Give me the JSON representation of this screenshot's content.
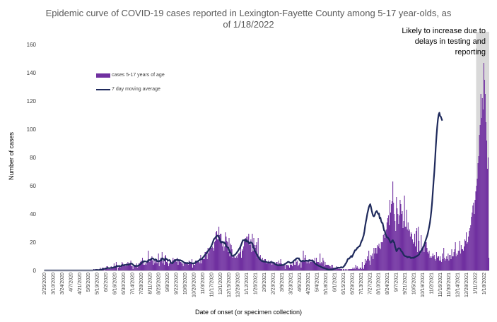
{
  "chart_data": {
    "type": "bar",
    "title_lines": [
      "Epidemic curve of COVID-19 cases reported in Lexington-Fayette County among 5-17 year-olds, as",
      "of 1/18/2022"
    ],
    "annotation_lines": [
      "Likely to increase due to",
      "delays in testing and",
      "reporting"
    ],
    "xlabel": "Date of onset (or specimen collection)",
    "ylabel": "Number of cases",
    "ylim": [
      0,
      160
    ],
    "yticks": [
      "0",
      "20",
      "40",
      "60",
      "80",
      "100",
      "120",
      "140",
      "160"
    ],
    "grid": false,
    "legend_position": "top-left",
    "x_tick_labels": [
      "2/25/2020",
      "3/10/2020",
      "3/24/2020",
      "4/7/2020",
      "4/21/2020",
      "5/5/2020",
      "5/19/2020",
      "6/2/2020",
      "6/16/2020",
      "6/30/2020",
      "7/14/2020",
      "7/28/2020",
      "8/11/2020",
      "8/25/2020",
      "9/8/2020",
      "9/22/2020",
      "10/6/2020",
      "10/20/2020",
      "11/3/2020",
      "11/17/2020",
      "12/1/2020",
      "12/15/2020",
      "12/29/2020",
      "1/12/2021",
      "1/26/2021",
      "2/9/2021",
      "2/23/2021",
      "3/9/2021",
      "3/23/2021",
      "4/6/2021",
      "4/20/2021",
      "5/4/2021",
      "5/18/2021",
      "6/1/2021",
      "6/15/2021",
      "6/29/2021",
      "7/13/2021",
      "7/27/2021",
      "8/10/2021",
      "8/24/2021",
      "9/7/2021",
      "9/21/2021",
      "10/5/2021",
      "10/19/2021",
      "11/2/2021",
      "11/16/2021",
      "11/30/2021",
      "12/14/2021",
      "12/28/2021",
      "1/11/2022",
      "1/18/2022"
    ],
    "series": [
      {
        "name": "cases 5-17 years of age",
        "kind": "bar",
        "color": "#7030A0",
        "values": [
          0,
          0,
          0,
          0,
          0,
          0,
          0,
          0,
          0,
          0,
          0,
          0,
          0,
          0,
          0,
          0,
          0,
          0,
          0,
          0,
          0,
          0,
          0,
          0,
          0,
          0,
          0,
          0,
          0,
          0,
          0,
          0,
          0,
          0,
          0,
          0,
          0,
          0,
          0,
          0,
          0,
          0,
          0,
          0,
          0,
          0,
          0,
          0,
          0,
          0,
          0,
          0,
          0,
          0,
          0,
          0,
          0,
          0,
          0,
          0,
          0,
          0,
          0,
          0,
          0,
          0,
          0,
          0,
          1,
          0,
          1,
          0,
          1,
          0,
          0,
          0,
          1,
          2,
          0,
          1,
          2,
          2,
          1,
          0,
          2,
          2,
          3,
          3,
          1,
          1,
          1,
          1,
          3,
          2,
          2,
          2,
          5,
          3,
          2,
          6,
          4,
          0,
          2,
          3,
          3,
          2,
          4,
          6,
          5,
          4,
          4,
          4,
          3,
          5,
          3,
          6,
          5,
          5,
          5,
          7,
          3,
          3,
          1,
          3,
          3,
          4,
          3,
          5,
          2,
          4,
          5,
          5,
          6,
          7,
          6,
          9,
          4,
          7,
          4,
          5,
          4,
          6,
          6,
          14,
          7,
          6,
          8,
          9,
          10,
          7,
          4,
          7,
          5,
          8,
          7,
          5,
          6,
          12,
          3,
          7,
          9,
          7,
          13,
          5,
          7,
          4,
          10,
          11,
          6,
          7,
          5,
          3,
          5,
          6,
          5,
          5,
          7,
          9,
          6,
          8,
          8,
          7,
          6,
          9,
          4,
          8,
          7,
          6,
          6,
          5,
          5,
          3,
          5,
          6,
          6,
          5,
          5,
          5,
          4,
          7,
          6,
          5,
          5,
          8,
          2,
          5,
          4,
          4,
          7,
          7,
          6,
          7,
          7,
          6,
          5,
          11,
          5,
          9,
          8,
          8,
          8,
          13,
          13,
          11,
          8,
          16,
          12,
          16,
          15,
          16,
          16,
          17,
          16,
          14,
          20,
          21,
          27,
          28,
          22,
          22,
          31,
          25,
          26,
          26,
          21,
          17,
          19,
          14,
          17,
          27,
          24,
          21,
          20,
          13,
          23,
          10,
          19,
          18,
          15,
          9,
          10,
          10,
          9,
          9,
          10,
          9,
          11,
          12,
          12,
          13,
          17,
          9,
          15,
          14,
          17,
          22,
          20,
          23,
          24,
          21,
          24,
          26,
          18,
          18,
          22,
          13,
          26,
          14,
          23,
          18,
          16,
          18,
          20,
          9,
          23,
          8,
          10,
          11,
          8,
          7,
          9,
          7,
          6,
          8,
          8,
          5,
          6,
          5,
          7,
          6,
          5,
          6,
          7,
          4,
          6,
          5,
          6,
          5,
          4,
          6,
          6,
          4,
          7,
          5,
          5,
          8,
          5,
          4,
          3,
          4,
          4,
          1,
          4,
          4,
          4,
          3,
          4,
          2,
          4,
          5,
          4,
          3,
          6,
          6,
          4,
          4,
          9,
          6,
          7,
          3,
          4,
          5,
          7,
          2,
          6,
          7,
          14,
          7,
          9,
          11,
          7,
          5,
          7,
          7,
          5,
          8,
          6,
          6,
          8,
          6,
          6,
          6,
          9,
          5,
          9,
          6,
          6,
          6,
          5,
          12,
          5,
          6,
          5,
          9,
          7,
          3,
          6,
          4,
          4,
          4,
          4,
          4,
          3,
          3,
          2,
          4,
          4,
          2,
          2,
          1,
          2,
          2,
          3,
          2,
          1,
          2,
          1,
          1,
          1,
          1,
          0,
          1,
          1,
          0,
          1,
          0,
          1,
          0,
          1,
          1,
          1,
          1,
          1,
          1,
          2,
          1,
          2,
          1,
          4,
          2,
          3,
          2,
          1,
          1,
          2,
          2,
          1,
          6,
          2,
          1,
          4,
          8,
          5,
          7,
          10,
          8,
          14,
          7,
          4,
          11,
          10,
          12,
          8,
          16,
          12,
          16,
          16,
          12,
          18,
          17,
          19,
          16,
          15,
          20,
          20,
          20,
          25,
          26,
          23,
          25,
          29,
          34,
          37,
          39,
          32,
          50,
          41,
          47,
          49,
          63,
          48,
          40,
          35,
          28,
          52,
          44,
          40,
          33,
          39,
          50,
          47,
          40,
          42,
          30,
          35,
          53,
          31,
          31,
          43,
          29,
          34,
          28,
          29,
          24,
          27,
          26,
          22,
          19,
          20,
          26,
          17,
          28,
          30,
          13,
          31,
          21,
          14,
          12,
          25,
          14,
          17,
          16,
          13,
          18,
          20,
          20,
          16,
          13,
          12,
          14,
          9,
          10,
          9,
          10,
          12,
          10,
          11,
          8,
          7,
          13,
          9,
          10,
          10,
          7,
          10,
          7,
          6,
          12,
          8,
          16,
          9,
          7,
          8,
          10,
          8,
          12,
          7,
          11,
          11,
          8,
          15,
          10,
          10,
          13,
          15,
          20,
          10,
          12,
          11,
          14,
          14,
          21,
          12,
          18,
          15,
          15,
          14,
          17,
          22,
          21,
          27,
          19,
          20,
          24,
          28,
          30,
          32,
          38,
          41,
          46,
          48,
          40,
          50,
          56,
          60,
          65,
          76,
          81,
          96,
          103,
          125,
          108,
          122,
          114,
          147,
          135,
          125,
          105,
          92,
          72,
          80,
          9
        ]
      },
      {
        "name": "7 day moving average",
        "kind": "line",
        "color": "#1F2A5C",
        "values": [
          0,
          0,
          0,
          0,
          0,
          0,
          0,
          0,
          0,
          0,
          0,
          0,
          0,
          0,
          0,
          0,
          0,
          0,
          0,
          0,
          0,
          0,
          0,
          0,
          0,
          0,
          0,
          0,
          0,
          0,
          0,
          0,
          0,
          0,
          0,
          0,
          0,
          0,
          0,
          0,
          0,
          0,
          0,
          0,
          0,
          0,
          0,
          0,
          0,
          0,
          0,
          0,
          0,
          0,
          0,
          0,
          0,
          0,
          0,
          0,
          0,
          0,
          0,
          0,
          0,
          0,
          0,
          0,
          0.2,
          0.2,
          0.3,
          0.3,
          0.4,
          0.4,
          0.4,
          0.3,
          0.4,
          0.6,
          0.6,
          0.6,
          0.8,
          1,
          1.1,
          1.1,
          1.4,
          1.4,
          1.6,
          1.9,
          1.7,
          1.6,
          1.6,
          1.7,
          1.9,
          1.9,
          1.9,
          2.1,
          2.3,
          2.4,
          2.3,
          3,
          3.1,
          3,
          3.1,
          3.3,
          3,
          2.8,
          3.3,
          3.9,
          3.7,
          3.6,
          3.9,
          3.9,
          3.9,
          4.1,
          3.9,
          4.3,
          4.1,
          4.4,
          4.6,
          5,
          4.9,
          4.6,
          4.1,
          3.6,
          3.4,
          3.1,
          3.1,
          3.3,
          3.1,
          3.4,
          3.6,
          3.9,
          4.4,
          4.8,
          5.3,
          6.2,
          6.1,
          6.6,
          6.4,
          6.4,
          6.3,
          6.1,
          6.1,
          7.3,
          7.3,
          7.4,
          7.6,
          8,
          8.6,
          8.5,
          8.3,
          7.6,
          7.5,
          7.9,
          7.6,
          6.6,
          6.5,
          6.7,
          6.5,
          6.9,
          7.3,
          7.2,
          8.7,
          8.4,
          8.1,
          7.1,
          8.1,
          8.5,
          8,
          7.8,
          7.1,
          7.1,
          7.4,
          6.9,
          5.3,
          5.3,
          5.1,
          5.6,
          6.3,
          7.1,
          6.9,
          7.4,
          7.6,
          7.7,
          7.1,
          7.4,
          7.1,
          7.3,
          7,
          6.9,
          6.4,
          6.1,
          5.7,
          5.4,
          5.3,
          5.1,
          5.4,
          5.3,
          5,
          5.1,
          5.7,
          5.4,
          5.3,
          5.1,
          4.9,
          5.1,
          5.1,
          5.1,
          5.9,
          5.9,
          6.3,
          6.4,
          6.9,
          7.1,
          7.9,
          7.7,
          8.1,
          8.1,
          9.1,
          9.7,
          10.4,
          11,
          11.4,
          11.9,
          13.3,
          13.7,
          14.3,
          15.1,
          15.7,
          16.6,
          17.7,
          18.9,
          20.4,
          21.9,
          22.6,
          23,
          23.9,
          24.3,
          24.7,
          24.4,
          23.4,
          22.3,
          20.7,
          19.7,
          20.1,
          20.3,
          19.7,
          20,
          19,
          19.3,
          17,
          16.9,
          16.3,
          16.1,
          14.6,
          12.6,
          12.7,
          11.6,
          10.4,
          10.3,
          10.3,
          10.9,
          10.9,
          11.6,
          12.1,
          12.9,
          13.6,
          14.4,
          15.4,
          16.1,
          17.3,
          18.6,
          20,
          21.4,
          21.4,
          21.4,
          21.9,
          20.4,
          21.6,
          20.4,
          20.6,
          19.6,
          18.9,
          19.9,
          19.9,
          19.6,
          19.3,
          16.6,
          16.1,
          13.9,
          13.6,
          12.7,
          11.6,
          10.7,
          9.4,
          9,
          7.9,
          7.9,
          7.1,
          6.7,
          6.4,
          6.7,
          6.1,
          6.3,
          6.3,
          6,
          5.9,
          5.7,
          5.6,
          5.6,
          5.6,
          5.9,
          5.9,
          5.7,
          5.7,
          5.4,
          5.3,
          4.6,
          4.3,
          4.1,
          3.9,
          3.7,
          3.7,
          3.7,
          3.7,
          3.6,
          3.7,
          3.9,
          3.7,
          3.9,
          4.4,
          4.6,
          4.9,
          5.3,
          5.7,
          6.1,
          6.1,
          5.7,
          5.4,
          5.4,
          5.6,
          5.7,
          6.1,
          7,
          7.3,
          7.6,
          8.1,
          8.6,
          8.7,
          8.4,
          8.6,
          7.3,
          7,
          6.4,
          6.4,
          6.9,
          6.9,
          6.6,
          6.6,
          7,
          6.9,
          7,
          6.7,
          6.7,
          7.3,
          7,
          7.1,
          6.9,
          7,
          7,
          6.3,
          5.9,
          5,
          4.7,
          4.3,
          3.9,
          3.7,
          3.3,
          3.1,
          3,
          2.6,
          2.4,
          2.1,
          1.9,
          1.7,
          1.7,
          1.4,
          1.3,
          1,
          0.9,
          0.7,
          0.6,
          0.6,
          0.7,
          0.6,
          0.7,
          0.7,
          0.9,
          1,
          1.3,
          1.3,
          1.6,
          1.7,
          1.9,
          2,
          1.9,
          1.9,
          2,
          2.4,
          2.1,
          2.1,
          2.4,
          3.1,
          3.6,
          4.7,
          5.3,
          6.4,
          7.9,
          8.4,
          8.3,
          8.9,
          9.7,
          10.3,
          9.6,
          10.7,
          11.9,
          13.1,
          14.3,
          14.3,
          14.9,
          15.9,
          16.1,
          16.9,
          17,
          17.6,
          19.4,
          20.7,
          21.6,
          23.3,
          24.9,
          27.6,
          31.4,
          34.4,
          37,
          40.1,
          42.3,
          44.6,
          46.1,
          46.9,
          44.9,
          42.4,
          40.3,
          38.7,
          38.3,
          38.9,
          40.6,
          41.6,
          42.1,
          40.9,
          40,
          40.3,
          36.9,
          37.4,
          35,
          33.7,
          33.6,
          31,
          28.4,
          27.9,
          25.6,
          24.6,
          23.4,
          23.4,
          22.7,
          22,
          20.6,
          19.7,
          20,
          21,
          21.4,
          20.1,
          19.9,
          17,
          15.4,
          13.6,
          14.3,
          15.4,
          15.7,
          15.7,
          15.4,
          14.3,
          13.4,
          13.1,
          12.1,
          11,
          10.6,
          10.1,
          10,
          9.9,
          9.3,
          9.7,
          9.4,
          9.6,
          9.3,
          8.7,
          8.9,
          8.9,
          9.1,
          8.9,
          9.4,
          9.6,
          9.9,
          10.1,
          10.6,
          10.7,
          11.4,
          12.4,
          13.1,
          14.1,
          14.6,
          15.7,
          16.6,
          17.9,
          19.4,
          21.1,
          22.6,
          24.1,
          25.9,
          28.3,
          30.9,
          33.7,
          37.7,
          42.3,
          48,
          55.4,
          62.7,
          69.4,
          77.4,
          86.9,
          94.9,
          101.6,
          106.9,
          110.3,
          111.7,
          109.4,
          108.9,
          107.4,
          106.1
        ]
      }
    ]
  }
}
